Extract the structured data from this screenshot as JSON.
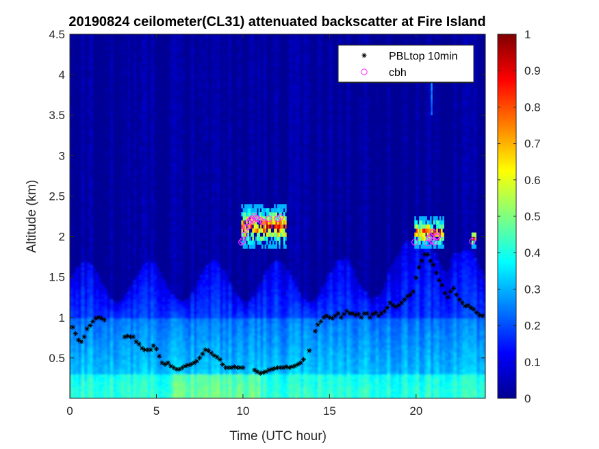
{
  "chart_data": {
    "type": "heatmap",
    "title": "20190824 ceilometer(CL31) attenuated backscatter at Fire Island",
    "xlabel": "Time (UTC hour)",
    "ylabel": "Altitude (km)",
    "xlim": [
      0,
      24
    ],
    "ylim": [
      0,
      4.5
    ],
    "x_ticks": [
      0,
      5,
      10,
      15,
      20
    ],
    "x_tick_labels": [
      "0",
      "5",
      "10",
      "15",
      "20"
    ],
    "y_ticks": [
      0.5,
      1,
      1.5,
      2,
      2.5,
      3,
      3.5,
      4,
      4.5
    ],
    "y_tick_labels": [
      "0.5",
      "1",
      "1.5",
      "2",
      "2.5",
      "3",
      "3.5",
      "4",
      "4.5"
    ],
    "colorbar": {
      "colormap": "jet",
      "range": [
        0,
        1
      ],
      "ticks": [
        0,
        0.1,
        0.2,
        0.3,
        0.4,
        0.5,
        0.6,
        0.7,
        0.8,
        0.9,
        1
      ],
      "tick_labels": [
        "0",
        "0.1",
        "0.2",
        "0.3",
        "0.4",
        "0.5",
        "0.6",
        "0.7",
        "0.8",
        "0.9",
        "1"
      ]
    },
    "background_field": {
      "description_of_levels": "approximate attenuated backscatter level by altitude band",
      "surface_layer_0_to_0.3km": 0.42,
      "mixed_layer_0.3_to_1.0km": 0.32,
      "upper_mixed_layer_1.0_to_1.9km": 0.18,
      "free_troposphere_above_2km": 0.02
    },
    "series": [
      {
        "name": "PBLtop 10min",
        "marker": "asterisk",
        "color": "#000000",
        "x": [
          0.0,
          0.17,
          0.33,
          0.5,
          0.67,
          0.83,
          1.0,
          1.17,
          1.33,
          1.5,
          1.67,
          1.83,
          2.0,
          3.17,
          3.33,
          3.5,
          3.67,
          3.83,
          4.0,
          4.17,
          4.33,
          4.5,
          4.67,
          4.83,
          5.0,
          5.17,
          5.33,
          5.5,
          5.67,
          5.83,
          6.0,
          6.17,
          6.33,
          6.5,
          6.67,
          6.83,
          7.0,
          7.17,
          7.33,
          7.5,
          7.67,
          7.83,
          8.0,
          8.17,
          8.33,
          8.5,
          8.67,
          8.83,
          9.0,
          9.17,
          9.33,
          9.5,
          9.67,
          9.83,
          10.0,
          10.67,
          10.83,
          11.0,
          11.17,
          11.33,
          11.5,
          11.67,
          11.83,
          12.0,
          12.17,
          12.33,
          12.5,
          12.67,
          12.83,
          13.0,
          13.17,
          13.33,
          13.5,
          13.83,
          14.17,
          14.33,
          14.5,
          14.67,
          14.83,
          15.0,
          15.17,
          15.33,
          15.5,
          15.67,
          15.83,
          16.0,
          16.17,
          16.33,
          16.5,
          16.67,
          16.83,
          17.0,
          17.17,
          17.33,
          17.5,
          17.67,
          17.83,
          18.0,
          18.17,
          18.33,
          18.5,
          18.67,
          18.83,
          19.0,
          19.17,
          19.33,
          19.5,
          19.67,
          19.83,
          20.0,
          20.17,
          20.33,
          20.5,
          20.67,
          20.83,
          21.0,
          21.17,
          21.33,
          21.5,
          21.67,
          21.83,
          22.0,
          22.17,
          22.33,
          22.5,
          22.67,
          22.83,
          23.0,
          23.17,
          23.33,
          23.5,
          23.67,
          23.83
        ],
        "y": [
          0.88,
          0.88,
          0.8,
          0.72,
          0.7,
          0.76,
          0.86,
          0.9,
          0.95,
          0.99,
          1.0,
          0.99,
          0.97,
          0.76,
          0.77,
          0.76,
          0.76,
          0.7,
          0.67,
          0.62,
          0.6,
          0.6,
          0.6,
          0.65,
          0.61,
          0.52,
          0.44,
          0.42,
          0.44,
          0.4,
          0.38,
          0.36,
          0.36,
          0.38,
          0.4,
          0.41,
          0.42,
          0.44,
          0.46,
          0.5,
          0.55,
          0.6,
          0.59,
          0.56,
          0.53,
          0.51,
          0.48,
          0.42,
          0.38,
          0.38,
          0.38,
          0.39,
          0.38,
          0.38,
          0.38,
          0.35,
          0.33,
          0.31,
          0.32,
          0.33,
          0.35,
          0.36,
          0.37,
          0.38,
          0.38,
          0.38,
          0.39,
          0.38,
          0.39,
          0.4,
          0.42,
          0.44,
          0.48,
          0.59,
          0.83,
          0.91,
          0.95,
          1.0,
          1.02,
          1.0,
          0.99,
          1.02,
          1.05,
          1.0,
          1.04,
          1.08,
          1.05,
          1.05,
          1.03,
          1.04,
          1.0,
          1.05,
          1.05,
          1.0,
          1.04,
          1.06,
          1.02,
          1.05,
          1.08,
          1.12,
          1.18,
          1.15,
          1.13,
          1.15,
          1.18,
          1.22,
          1.26,
          1.28,
          1.32,
          1.49,
          1.62,
          1.7,
          1.78,
          1.78,
          1.7,
          1.65,
          1.55,
          1.46,
          1.4,
          1.3,
          1.25,
          1.32,
          1.36,
          1.28,
          1.22,
          1.18,
          1.14,
          1.15,
          1.12,
          1.1,
          1.06,
          1.03,
          1.02
        ]
      },
      {
        "name": "cbh",
        "marker": "circle",
        "color": "#ff33ff",
        "x": [
          9.92,
          10.0,
          10.08,
          10.17,
          10.25,
          10.33,
          10.42,
          10.5,
          10.58,
          10.67,
          10.75,
          10.83,
          11.0,
          11.17,
          11.5,
          12.0,
          12.17,
          19.92,
          20.67,
          20.75,
          20.83,
          20.92,
          21.0,
          21.08,
          21.17,
          21.25,
          23.25
        ],
        "y": [
          1.93,
          1.95,
          2.02,
          2.1,
          2.12,
          2.18,
          2.2,
          2.22,
          2.2,
          2.25,
          2.23,
          2.22,
          2.2,
          2.18,
          2.22,
          2.22,
          2.24,
          1.93,
          1.92,
          1.98,
          2.0,
          1.95,
          2.05,
          1.93,
          2.0,
          2.0,
          1.94
        ]
      }
    ],
    "cloud_features": [
      {
        "x_start": 9.9,
        "x_end": 12.5,
        "base_km": 1.85,
        "top_km": 2.35,
        "peak_value": 1.0
      },
      {
        "x_start": 19.9,
        "x_end": 21.6,
        "base_km": 1.85,
        "top_km": 2.2,
        "peak_value": 1.0
      },
      {
        "x_start": 23.2,
        "x_end": 23.4,
        "base_km": 1.85,
        "top_km": 2.05,
        "peak_value": 0.9
      }
    ],
    "legend_position": "top-right"
  }
}
